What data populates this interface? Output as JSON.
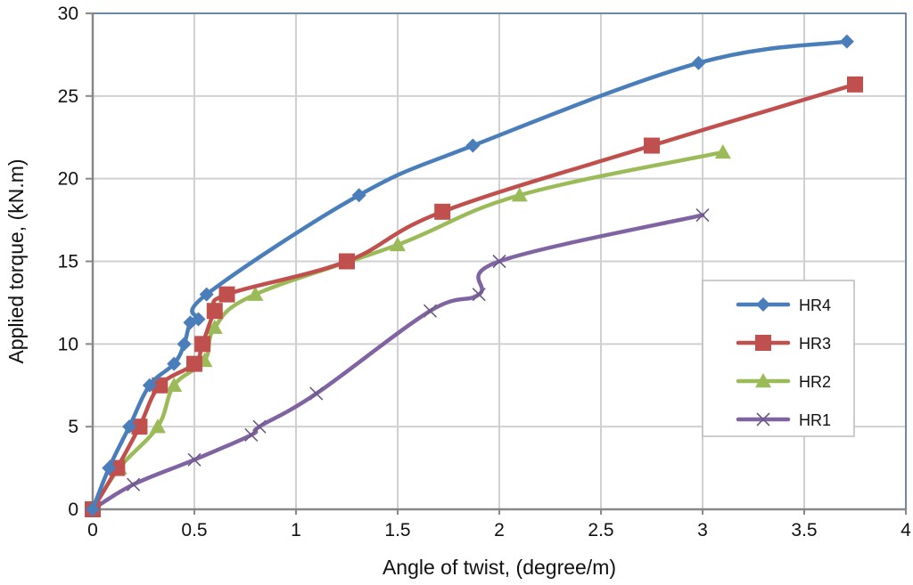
{
  "chart_data": {
    "type": "line",
    "title": "",
    "xlabel": "Angle of twist, (degree/m)",
    "ylabel": "Applied torque, (kN.m)",
    "xlim": [
      0,
      4
    ],
    "ylim": [
      0,
      30
    ],
    "xticks": [
      "0",
      "0.5",
      "1",
      "1.5",
      "2",
      "2.5",
      "3",
      "3.5",
      "4"
    ],
    "yticks": [
      "0",
      "5",
      "10",
      "15",
      "20",
      "25",
      "30"
    ],
    "grid": true,
    "legend_position": "center-right",
    "series": [
      {
        "name": "HR4",
        "color": "#4a7ebb",
        "marker": "diamond",
        "x": [
          0,
          0.08,
          0.18,
          0.28,
          0.4,
          0.45,
          0.48,
          0.52,
          0.56,
          1.31,
          1.87,
          2.98,
          3.71
        ],
        "y": [
          0,
          2.5,
          5,
          7.5,
          8.8,
          10,
          11.3,
          11.5,
          13,
          19,
          22,
          27,
          28.3
        ]
      },
      {
        "name": "HR3",
        "color": "#c0504d",
        "marker": "square",
        "x": [
          0,
          0.12,
          0.23,
          0.33,
          0.5,
          0.54,
          0.6,
          0.66,
          1.25,
          1.72,
          2.75,
          3.75
        ],
        "y": [
          0,
          2.5,
          5,
          7.5,
          8.8,
          10,
          12,
          13,
          15,
          18,
          22,
          25.7
        ]
      },
      {
        "name": "HR2",
        "color": "#9bbb59",
        "marker": "triangle",
        "x": [
          0,
          0.13,
          0.32,
          0.4,
          0.55,
          0.6,
          0.8,
          1.5,
          2.1,
          3.1
        ],
        "y": [
          0,
          2.5,
          5,
          7.5,
          9,
          11,
          13,
          16,
          19,
          21.6
        ]
      },
      {
        "name": "HR1",
        "color": "#8064a2",
        "marker": "x",
        "x": [
          0,
          0.2,
          0.5,
          0.78,
          0.82,
          1.1,
          1.66,
          1.9,
          2.0,
          3.0
        ],
        "y": [
          0,
          1.5,
          3,
          4.5,
          5,
          7,
          12,
          13,
          15,
          17.8
        ]
      }
    ]
  }
}
